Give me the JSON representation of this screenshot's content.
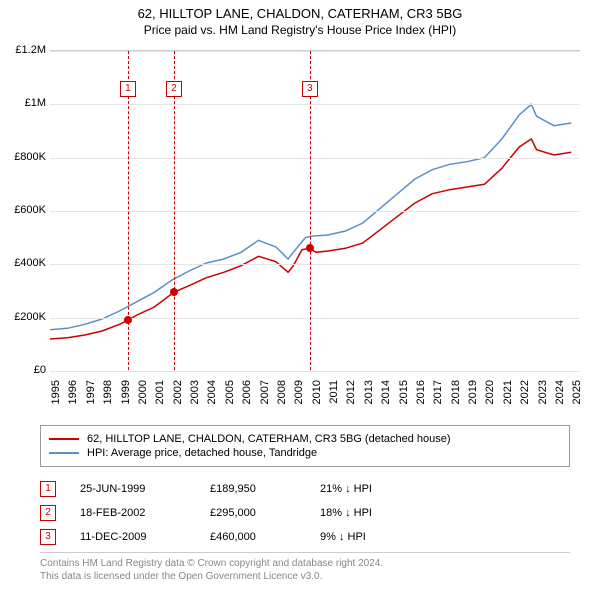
{
  "title": {
    "line1": "62, HILLTOP LANE, CHALDON, CATERHAM, CR3 5BG",
    "line2": "Price paid vs. HM Land Registry's House Price Index (HPI)"
  },
  "chart": {
    "type": "line",
    "background_color": "#ffffff",
    "grid_color": "#e5e5e5",
    "axis_color": "#cccccc",
    "font_size_axis": 11,
    "x_domain": [
      1995,
      2025.5
    ],
    "y_domain": [
      0,
      1200000
    ],
    "y_ticks": [
      {
        "v": 0,
        "label": "£0"
      },
      {
        "v": 200000,
        "label": "£200K"
      },
      {
        "v": 400000,
        "label": "£400K"
      },
      {
        "v": 600000,
        "label": "£600K"
      },
      {
        "v": 800000,
        "label": "£800K"
      },
      {
        "v": 1000000,
        "label": "£1M"
      },
      {
        "v": 1200000,
        "label": "£1.2M"
      }
    ],
    "x_ticks": [
      1995,
      1996,
      1997,
      1998,
      1999,
      2000,
      2001,
      2002,
      2003,
      2004,
      2005,
      2006,
      2007,
      2008,
      2009,
      2010,
      2011,
      2012,
      2013,
      2014,
      2015,
      2016,
      2017,
      2018,
      2019,
      2020,
      2021,
      2022,
      2023,
      2024,
      2025
    ],
    "series": [
      {
        "id": "price_paid",
        "label": "62, HILLTOP LANE, CHALDON, CATERHAM, CR3 5BG (detached house)",
        "color": "#cc0000",
        "line_width": 1.5,
        "points": [
          [
            1995,
            120000
          ],
          [
            1996,
            125000
          ],
          [
            1997,
            135000
          ],
          [
            1998,
            150000
          ],
          [
            1999,
            175000
          ],
          [
            1999.48,
            189950
          ],
          [
            2000,
            210000
          ],
          [
            2001,
            240000
          ],
          [
            2002.13,
            295000
          ],
          [
            2003,
            320000
          ],
          [
            2004,
            350000
          ],
          [
            2005,
            370000
          ],
          [
            2006,
            395000
          ],
          [
            2007,
            430000
          ],
          [
            2008,
            410000
          ],
          [
            2008.7,
            370000
          ],
          [
            2009,
            395000
          ],
          [
            2009.5,
            455000
          ],
          [
            2009.95,
            460000
          ],
          [
            2010.3,
            445000
          ],
          [
            2011,
            450000
          ],
          [
            2012,
            460000
          ],
          [
            2013,
            480000
          ],
          [
            2014,
            530000
          ],
          [
            2015,
            580000
          ],
          [
            2016,
            630000
          ],
          [
            2017,
            665000
          ],
          [
            2018,
            680000
          ],
          [
            2019,
            690000
          ],
          [
            2020,
            700000
          ],
          [
            2021,
            760000
          ],
          [
            2022,
            840000
          ],
          [
            2022.7,
            870000
          ],
          [
            2023,
            830000
          ],
          [
            2024,
            810000
          ],
          [
            2025,
            820000
          ]
        ]
      },
      {
        "id": "hpi",
        "label": "HPI: Average price, detached house, Tandridge",
        "color": "#5b8fc7",
        "line_width": 1.5,
        "points": [
          [
            1995,
            155000
          ],
          [
            1996,
            160000
          ],
          [
            1997,
            175000
          ],
          [
            1998,
            195000
          ],
          [
            1999,
            225000
          ],
          [
            2000,
            260000
          ],
          [
            2001,
            295000
          ],
          [
            2002,
            340000
          ],
          [
            2003,
            375000
          ],
          [
            2004,
            405000
          ],
          [
            2005,
            420000
          ],
          [
            2006,
            445000
          ],
          [
            2007,
            490000
          ],
          [
            2008,
            465000
          ],
          [
            2008.7,
            420000
          ],
          [
            2009,
            445000
          ],
          [
            2009.7,
            500000
          ],
          [
            2010,
            505000
          ],
          [
            2011,
            510000
          ],
          [
            2012,
            525000
          ],
          [
            2013,
            555000
          ],
          [
            2014,
            610000
          ],
          [
            2015,
            665000
          ],
          [
            2016,
            720000
          ],
          [
            2017,
            755000
          ],
          [
            2018,
            775000
          ],
          [
            2019,
            785000
          ],
          [
            2020,
            800000
          ],
          [
            2021,
            870000
          ],
          [
            2022,
            960000
          ],
          [
            2022.7,
            1000000
          ],
          [
            2023,
            955000
          ],
          [
            2024,
            920000
          ],
          [
            2025,
            930000
          ]
        ]
      }
    ],
    "markers": [
      {
        "n": "1",
        "x": 1999.48,
        "y": 189950,
        "box_top": 30
      },
      {
        "n": "2",
        "x": 2002.13,
        "y": 295000,
        "box_top": 30
      },
      {
        "n": "3",
        "x": 2009.95,
        "y": 460000,
        "box_top": 30
      }
    ],
    "marker_color": "#cc0000",
    "marker_dot_color": "#cc0000"
  },
  "legend": {
    "border_color": "#999999",
    "items": [
      {
        "color": "#cc0000",
        "label": "62, HILLTOP LANE, CHALDON, CATERHAM, CR3 5BG (detached house)"
      },
      {
        "color": "#5b8fc7",
        "label": "HPI: Average price, detached house, Tandridge"
      }
    ]
  },
  "sales": [
    {
      "n": "1",
      "date": "25-JUN-1999",
      "price": "£189,950",
      "delta": "21% ↓ HPI"
    },
    {
      "n": "2",
      "date": "18-FEB-2002",
      "price": "£295,000",
      "delta": "18% ↓ HPI"
    },
    {
      "n": "3",
      "date": "11-DEC-2009",
      "price": "£460,000",
      "delta": "9% ↓ HPI"
    }
  ],
  "footer": {
    "line1": "Contains HM Land Registry data © Crown copyright and database right 2024.",
    "line2": "This data is licensed under the Open Government Licence v3.0.",
    "color": "#888888"
  }
}
